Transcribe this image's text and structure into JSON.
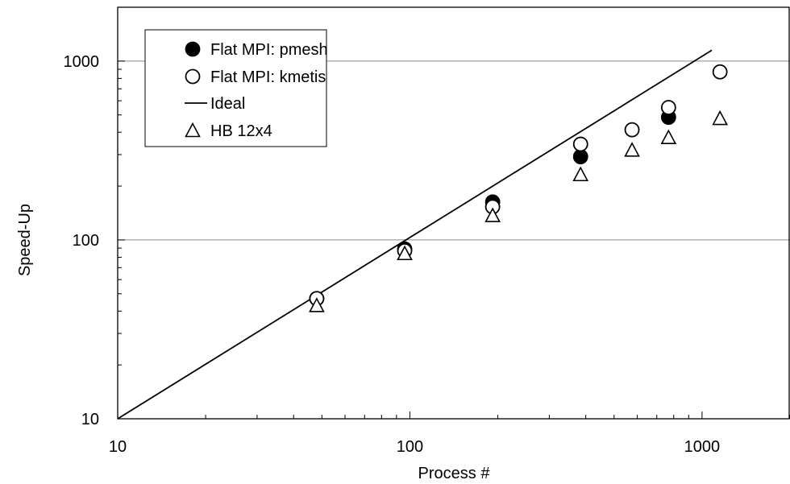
{
  "chart_data": {
    "type": "scatter",
    "title": "",
    "xlabel": "Process #",
    "ylabel": "Speed-Up",
    "xscale": "log",
    "yscale": "log",
    "xlim": [
      10,
      2000
    ],
    "ylim": [
      10,
      2000
    ],
    "xticks": [
      10,
      100,
      1000
    ],
    "yticks": [
      10,
      100,
      1000
    ],
    "xtick_labels": [
      "10",
      "100",
      "1000"
    ],
    "ytick_labels": [
      "10",
      "100",
      "1000"
    ],
    "grid": "horizontal major lines at 100 and 1000",
    "legend_position": "top-left",
    "series": [
      {
        "name": "Flat MPI: pmesh",
        "marker": "filled-circle",
        "color": "#000000",
        "x": [
          48,
          96,
          192,
          384,
          768
        ],
        "y": [
          47,
          89,
          163,
          292,
          485
        ]
      },
      {
        "name": "Flat MPI: kmetis",
        "marker": "open-circle",
        "color": "#000000",
        "x": [
          48,
          96,
          192,
          384,
          576,
          768,
          1152
        ],
        "y": [
          47,
          87,
          153,
          343,
          413,
          550,
          870
        ]
      },
      {
        "name": "Ideal",
        "marker": "line",
        "color": "#000000",
        "x": [
          10,
          1080
        ],
        "y": [
          10,
          1150
        ]
      },
      {
        "name": "HB 12x4",
        "marker": "open-triangle",
        "color": "#000000",
        "x": [
          48,
          96,
          192,
          384,
          576,
          768,
          1152
        ],
        "y": [
          43,
          84,
          137,
          232,
          318,
          374,
          478
        ]
      }
    ]
  }
}
